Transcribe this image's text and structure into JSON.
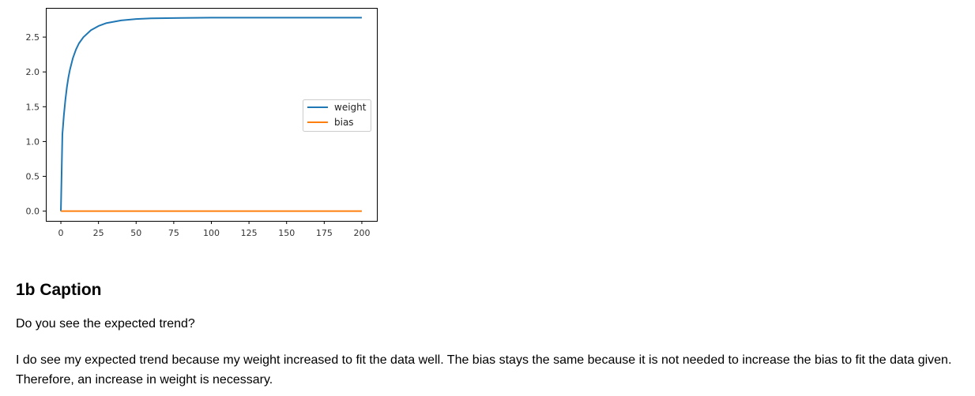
{
  "chart_data": {
    "type": "line",
    "x_ticks": [
      0,
      25,
      50,
      75,
      100,
      125,
      150,
      175,
      200
    ],
    "y_ticks": [
      0.0,
      0.5,
      1.0,
      1.5,
      2.0,
      2.5
    ],
    "y_tick_labels": [
      "0.0",
      "0.5",
      "1.0",
      "1.5",
      "2.0",
      "2.5"
    ],
    "xlim": [
      -10,
      210
    ],
    "ylim": [
      -0.14,
      2.92
    ],
    "grid": false,
    "legend_position": "center-right",
    "series": [
      {
        "name": "weight",
        "color": "#1f77b4",
        "x": [
          0,
          1,
          2,
          3,
          4,
          5,
          6,
          8,
          10,
          12,
          15,
          20,
          25,
          30,
          40,
          50,
          60,
          80,
          100,
          150,
          200
        ],
        "y": [
          0.0,
          1.1,
          1.38,
          1.6,
          1.78,
          1.92,
          2.03,
          2.2,
          2.32,
          2.41,
          2.5,
          2.6,
          2.66,
          2.7,
          2.74,
          2.76,
          2.77,
          2.775,
          2.78,
          2.78,
          2.78
        ]
      },
      {
        "name": "bias",
        "color": "#ff7f0e",
        "x": [
          0,
          200
        ],
        "y": [
          0.0,
          0.0
        ]
      }
    ]
  },
  "caption": {
    "heading": "1b Caption",
    "question": "Do you see the expected trend?",
    "answer": "I do see my expected trend because my weight increased to fit the data well. The bias stays the same because it is not needed to increase the bias to fit the data given. Therefore, an increase in weight is necessary."
  }
}
